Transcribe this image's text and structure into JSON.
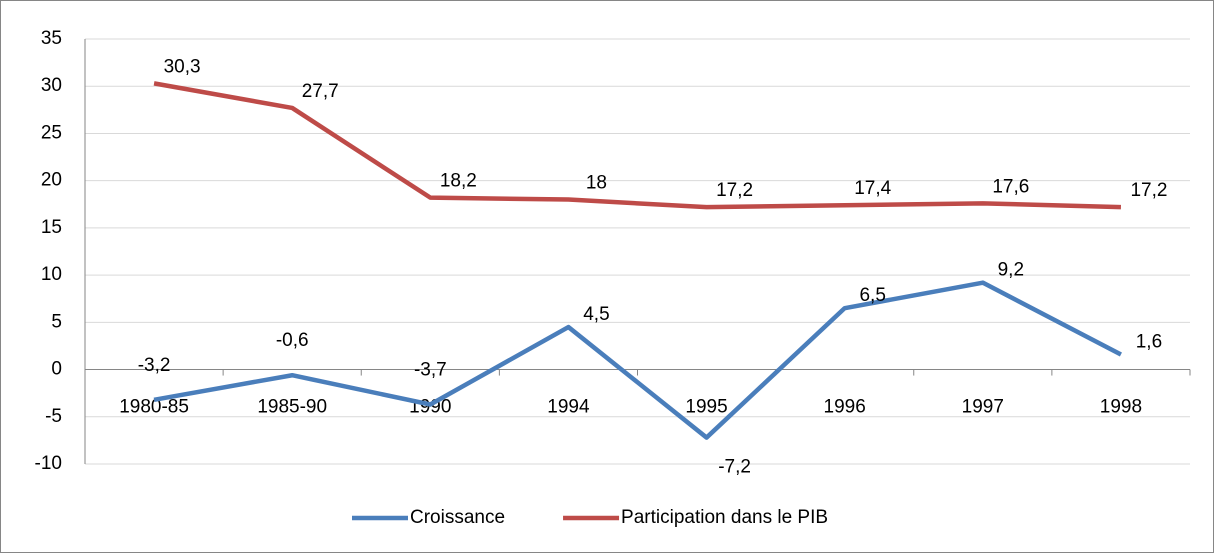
{
  "chart_data": {
    "type": "line",
    "categories": [
      "1980-85",
      "1985-90",
      "1990",
      "1994",
      "1995",
      "1996",
      "1997",
      "1998"
    ],
    "series": [
      {
        "name": "Croissance",
        "color": "#4a7ebb",
        "values": [
          -3.2,
          -0.6,
          -3.7,
          4.5,
          -7.2,
          6.5,
          9.2,
          1.6
        ],
        "value_labels": [
          "-3,2",
          "-0,6",
          "-3,7",
          "4,5",
          "-7,2",
          "6,5",
          "9,2",
          "1,6"
        ]
      },
      {
        "name": "Participation dans le PIB",
        "color": "#be4b48",
        "values": [
          30.3,
          27.7,
          18.2,
          18,
          17.2,
          17.4,
          17.6,
          17.2
        ],
        "value_labels": [
          "30,3",
          "27,7",
          "18,2",
          "18",
          "17,2",
          "17,4",
          "17,6",
          "17,2"
        ]
      }
    ],
    "ylim": [
      -10,
      35
    ],
    "yticks": [
      -10,
      -5,
      0,
      5,
      10,
      15,
      20,
      25,
      30,
      35
    ],
    "grid": true,
    "legend": "bottom"
  }
}
